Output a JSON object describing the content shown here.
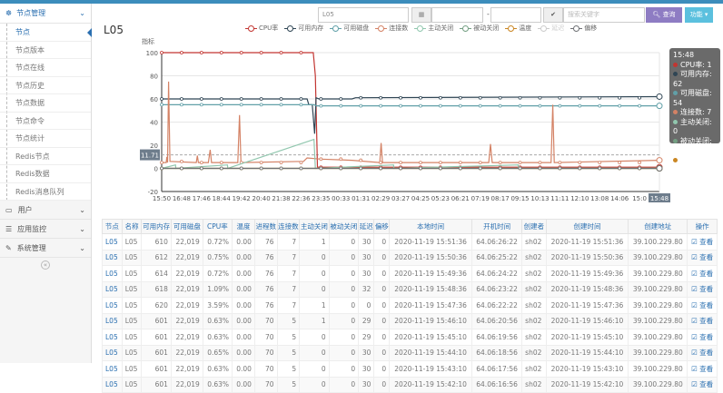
{
  "sidebar": {
    "section": {
      "label": "节点管理",
      "icon": "dashboard-icon"
    },
    "items": [
      "节点",
      "节点版本",
      "节点在线",
      "节点历史",
      "节点数据",
      "节点命令",
      "节点统计",
      "Redis节点",
      "Redis数据",
      "Redis消息队列"
    ],
    "active_index": 0,
    "groups": [
      {
        "label": "用户",
        "icon": "monitor-icon"
      },
      {
        "label": "应用监控",
        "icon": "list-icon"
      },
      {
        "label": "系统管理",
        "icon": "edit-icon"
      }
    ],
    "collapse_icon": "chevron-left-icon"
  },
  "toolbar": {
    "node_value": "L05",
    "date_start": "",
    "date_sep": "-",
    "date_end": "",
    "search_placeholder": "搜索关键字",
    "query_label": "查询",
    "func_label": "功能",
    "accent": "#8e7cc3",
    "func_color": "#5bc0de"
  },
  "page_title": "L05",
  "chart_data": {
    "type": "line",
    "ylabel": "指标",
    "ylim": [
      -20,
      100
    ],
    "yticks": [
      -20,
      0,
      20,
      40,
      60,
      80,
      100
    ],
    "xticks": [
      "15:50",
      "16:48",
      "17:46",
      "18:44",
      "19:42",
      "20:40",
      "21:38",
      "22:36",
      "23:35",
      "00:33",
      "01:31",
      "02:29",
      "03:27",
      "04:25",
      "05:23",
      "06:21",
      "07:19",
      "08:17",
      "09:15",
      "10:13",
      "11:11",
      "12:10",
      "13:08",
      "14:06",
      "15:0",
      "15:48"
    ],
    "x_start": "15:50",
    "x_end": "15:48",
    "markline": 11.71,
    "grid": true,
    "legend_position": "top",
    "series": [
      {
        "name": "CPU率",
        "color": "#c23531",
        "enabled": true,
        "points": [
          [
            "15:50",
            100
          ],
          [
            "23:08",
            100
          ],
          [
            "23:14",
            80
          ],
          [
            "23:20",
            1
          ],
          [
            "15:48",
            1
          ]
        ]
      },
      {
        "name": "可用内存",
        "color": "#2f4554",
        "enabled": true,
        "points": [
          [
            "15:50",
            60
          ],
          [
            "22:50",
            60
          ],
          [
            "22:55",
            55
          ],
          [
            "23:05",
            55
          ],
          [
            "23:12",
            30
          ],
          [
            "23:16",
            61
          ],
          [
            "23:25",
            60
          ],
          [
            "01:00",
            60
          ],
          [
            "01:10",
            61
          ],
          [
            "15:48",
            62
          ]
        ]
      },
      {
        "name": "可用磁盘",
        "color": "#61a0a8",
        "enabled": true,
        "points": [
          [
            "15:50",
            55
          ],
          [
            "23:10",
            55
          ],
          [
            "23:18",
            54
          ],
          [
            "15:48",
            54
          ]
        ]
      },
      {
        "name": "连接数",
        "color": "#d48265",
        "enabled": true,
        "points": [
          [
            "15:50",
            5
          ],
          [
            "16:03",
            5
          ],
          [
            "16:05",
            10
          ],
          [
            "16:07",
            5
          ],
          [
            "16:10",
            75
          ],
          [
            "16:14",
            6
          ],
          [
            "17:30",
            5
          ],
          [
            "17:33",
            11
          ],
          [
            "17:36",
            5
          ],
          [
            "18:05",
            5
          ],
          [
            "18:10",
            16
          ],
          [
            "18:14",
            5
          ],
          [
            "19:30",
            5
          ],
          [
            "19:35",
            46
          ],
          [
            "19:39",
            5
          ],
          [
            "22:40",
            6
          ],
          [
            "22:50",
            9
          ],
          [
            "23:30",
            8
          ],
          [
            "01:00",
            7
          ],
          [
            "02:20",
            5
          ],
          [
            "02:24",
            22
          ],
          [
            "02:28",
            5
          ],
          [
            "07:35",
            5
          ],
          [
            "07:40",
            21
          ],
          [
            "07:45",
            5
          ],
          [
            "10:35",
            5
          ],
          [
            "10:40",
            55
          ],
          [
            "10:44",
            5
          ],
          [
            "15:48",
            7
          ]
        ]
      },
      {
        "name": "主动关闭",
        "color": "#91c7ae",
        "enabled": true,
        "points": [
          [
            "15:50",
            0
          ],
          [
            "16:30",
            3
          ],
          [
            "16:31",
            0
          ],
          [
            "19:00",
            3
          ],
          [
            "19:01",
            0
          ],
          [
            "23:10",
            25
          ],
          [
            "23:14",
            0
          ],
          [
            "03:00",
            3
          ],
          [
            "03:01",
            0
          ],
          [
            "09:00",
            3
          ],
          [
            "09:01",
            0
          ],
          [
            "15:48",
            0
          ]
        ]
      },
      {
        "name": "被动关闭",
        "color": "#749f83",
        "enabled": true,
        "points": [
          [
            "15:50",
            0
          ],
          [
            "15:48",
            0
          ]
        ]
      },
      {
        "name": "温度",
        "color": "#ca8622",
        "enabled": true,
        "points": [
          [
            "15:50",
            0
          ],
          [
            "15:48",
            0
          ]
        ]
      },
      {
        "name": "延迟",
        "color": "#cccccc",
        "enabled": false,
        "points": []
      },
      {
        "name": "偏移",
        "color": "#6e7074",
        "enabled": true,
        "points": [
          [
            "15:50",
            0
          ],
          [
            "15:48",
            0
          ]
        ]
      }
    ],
    "tooltip": {
      "time": "15:48",
      "rows": [
        {
          "label": "CPU率: 1",
          "color": "#c23531"
        },
        {
          "label": "可用内存: 62",
          "color": "#2f4554"
        },
        {
          "label": "可用磁盘: 54",
          "color": "#61a0a8"
        },
        {
          "label": "连接数: 7",
          "color": "#d48265"
        },
        {
          "label": "主动关闭: 0",
          "color": "#91c7ae"
        },
        {
          "label": "被动关闭: 0",
          "color": "#749f83"
        },
        {
          "label": "温度: 0",
          "color": "#ca8622"
        },
        {
          "label": "偏移: 0",
          "color": ""
        }
      ]
    }
  },
  "table": {
    "headers": [
      "节点",
      "名称",
      "可用内存",
      "可用磁盘",
      "CPU率",
      "温度",
      "进程数",
      "连接数",
      "主动关闭",
      "被动关闭",
      "延迟",
      "偏移",
      "本地时间",
      "开机时间",
      "创建者",
      "创建时间",
      "创建地址",
      "操作"
    ],
    "action_label": "查看",
    "rows": [
      [
        "L05",
        "L05",
        "610",
        "22,019",
        "0.72%",
        "0.00",
        "76",
        "7",
        "1",
        "0",
        "30",
        "0",
        "2020-11-19 15:51:36",
        "64.06:26:22",
        "sh02",
        "2020-11-19 15:51:36",
        "39.100.229.80"
      ],
      [
        "L05",
        "L05",
        "612",
        "22,019",
        "0.75%",
        "0.00",
        "76",
        "7",
        "0",
        "0",
        "30",
        "0",
        "2020-11-19 15:50:36",
        "64.06:25:22",
        "sh02",
        "2020-11-19 15:50:36",
        "39.100.229.80"
      ],
      [
        "L05",
        "L05",
        "614",
        "22,019",
        "0.72%",
        "0.00",
        "76",
        "7",
        "0",
        "0",
        "30",
        "0",
        "2020-11-19 15:49:36",
        "64.06:24:22",
        "sh02",
        "2020-11-19 15:49:36",
        "39.100.229.80"
      ],
      [
        "L05",
        "L05",
        "618",
        "22,019",
        "1.09%",
        "0.00",
        "76",
        "7",
        "0",
        "0",
        "32",
        "0",
        "2020-11-19 15:48:36",
        "64.06:23:22",
        "sh02",
        "2020-11-19 15:48:36",
        "39.100.229.80"
      ],
      [
        "L05",
        "L05",
        "620",
        "22,019",
        "3.59%",
        "0.00",
        "76",
        "7",
        "1",
        "0",
        "0",
        "0",
        "2020-11-19 15:47:36",
        "64.06:22:22",
        "sh02",
        "2020-11-19 15:47:36",
        "39.100.229.80"
      ],
      [
        "L05",
        "L05",
        "601",
        "22,019",
        "0.63%",
        "0.00",
        "70",
        "5",
        "1",
        "0",
        "29",
        "0",
        "2020-11-19 15:46:10",
        "64.06:20:56",
        "sh02",
        "2020-11-19 15:46:10",
        "39.100.229.80"
      ],
      [
        "L05",
        "L05",
        "601",
        "22,019",
        "0.63%",
        "0.00",
        "70",
        "5",
        "0",
        "0",
        "29",
        "0",
        "2020-11-19 15:45:10",
        "64.06:19:56",
        "sh02",
        "2020-11-19 15:45:10",
        "39.100.229.80"
      ],
      [
        "L05",
        "L05",
        "601",
        "22,019",
        "0.65%",
        "0.00",
        "70",
        "5",
        "0",
        "0",
        "30",
        "0",
        "2020-11-19 15:44:10",
        "64.06:18:56",
        "sh02",
        "2020-11-19 15:44:10",
        "39.100.229.80"
      ],
      [
        "L05",
        "L05",
        "601",
        "22,019",
        "0.63%",
        "0.00",
        "70",
        "5",
        "0",
        "0",
        "30",
        "0",
        "2020-11-19 15:43:10",
        "64.06:17:56",
        "sh02",
        "2020-11-19 15:43:10",
        "39.100.229.80"
      ],
      [
        "L05",
        "L05",
        "601",
        "22,019",
        "0.63%",
        "0.00",
        "70",
        "5",
        "0",
        "0",
        "30",
        "0",
        "2020-11-19 15:42:10",
        "64.06:16:56",
        "sh02",
        "2020-11-19 15:42:10",
        "39.100.229.80"
      ]
    ]
  }
}
